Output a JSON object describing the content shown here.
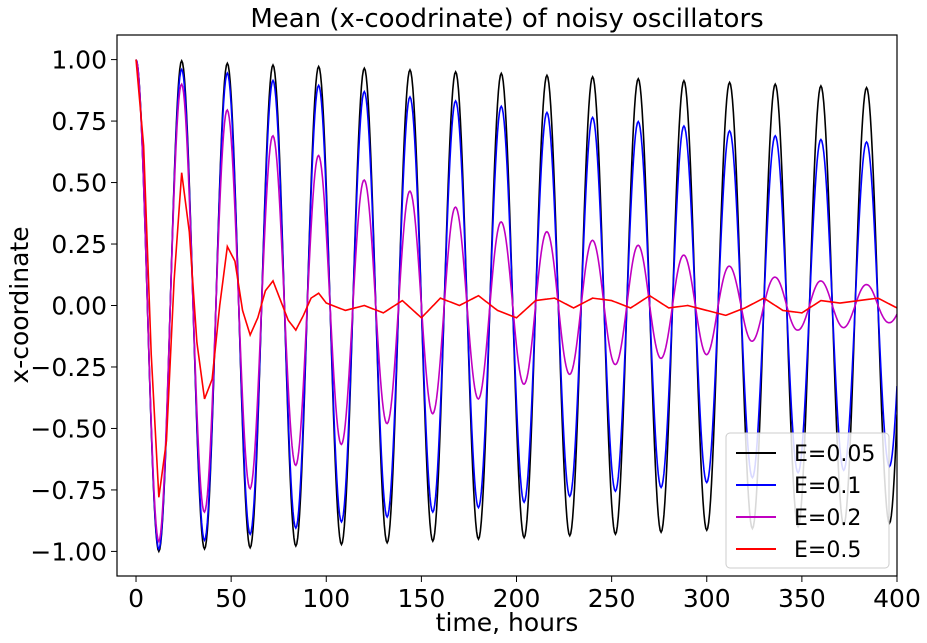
{
  "chart_data": {
    "type": "line",
    "title": "Mean (x-coodrinate) of noisy oscillators",
    "xlabel": "time, hours",
    "ylabel": "x-coordinate",
    "xlim": [
      -10,
      400
    ],
    "ylim": [
      -1.1,
      1.1
    ],
    "x_ticks": [
      0,
      50,
      100,
      150,
      200,
      250,
      300,
      350,
      400
    ],
    "x_tick_labels": [
      "0",
      "50",
      "100",
      "150",
      "200",
      "250",
      "300",
      "350",
      "400"
    ],
    "y_ticks": [
      1.0,
      0.75,
      0.5,
      0.25,
      0.0,
      -0.25,
      -0.5,
      -0.75,
      -1.0
    ],
    "y_tick_labels": [
      "1.00",
      "0.75",
      "0.50",
      "0.25",
      "0.00",
      "−0.25",
      "−0.50",
      "−0.75",
      "−1.00"
    ],
    "grid": false,
    "legend_position": "lower-right",
    "period_hours": 24,
    "series": [
      {
        "name": "E=0.05",
        "color": "#000000",
        "x": [
          0,
          6,
          12,
          18,
          24,
          36,
          48,
          60,
          72,
          84,
          96,
          108,
          120,
          132,
          144,
          156,
          168,
          180,
          192,
          204,
          216,
          228,
          240,
          252,
          264,
          276,
          288,
          300,
          312,
          324,
          336,
          348,
          360,
          372,
          384,
          396,
          400
        ],
        "y": [
          1.0,
          0.0,
          -1.0,
          0.0,
          0.995,
          -0.99,
          0.985,
          -0.985,
          0.978,
          -0.978,
          0.972,
          -0.972,
          0.965,
          -0.965,
          0.958,
          -0.958,
          0.95,
          -0.95,
          0.944,
          -0.944,
          0.936,
          -0.936,
          0.93,
          -0.93,
          0.922,
          -0.922,
          0.914,
          -0.914,
          0.907,
          -0.907,
          0.9,
          -0.9,
          0.893,
          -0.893,
          0.886,
          -0.886,
          -0.35
        ]
      },
      {
        "name": "E=0.1",
        "color": "#0000ff",
        "x": [
          0,
          6,
          12,
          18,
          24,
          36,
          48,
          60,
          72,
          84,
          96,
          108,
          120,
          132,
          144,
          156,
          168,
          180,
          192,
          204,
          216,
          228,
          240,
          252,
          264,
          276,
          288,
          300,
          312,
          324,
          336,
          348,
          360,
          372,
          384,
          396,
          400
        ],
        "y": [
          1.0,
          0.0,
          -0.99,
          0.0,
          0.96,
          -0.955,
          0.945,
          -0.93,
          0.915,
          -0.905,
          0.895,
          -0.88,
          0.87,
          -0.86,
          0.848,
          -0.84,
          0.832,
          -0.822,
          0.81,
          -0.8,
          0.785,
          -0.776,
          0.765,
          -0.755,
          0.748,
          -0.74,
          0.73,
          -0.72,
          0.71,
          -0.7,
          0.69,
          -0.68,
          0.675,
          -0.67,
          0.665,
          -0.655,
          -0.3
        ]
      },
      {
        "name": "E=0.2",
        "color": "#c000c0",
        "x": [
          0,
          6,
          12,
          18,
          24,
          36,
          48,
          60,
          72,
          84,
          96,
          108,
          120,
          132,
          144,
          156,
          168,
          180,
          192,
          204,
          216,
          228,
          240,
          252,
          264,
          276,
          288,
          300,
          312,
          324,
          336,
          348,
          360,
          372,
          384,
          396,
          400
        ],
        "y": [
          1.0,
          0.0,
          -0.96,
          0.0,
          0.9,
          -0.84,
          0.795,
          -0.745,
          0.69,
          -0.65,
          0.61,
          -0.565,
          0.51,
          -0.48,
          0.465,
          -0.44,
          0.4,
          -0.38,
          0.34,
          -0.32,
          0.3,
          -0.28,
          0.265,
          -0.24,
          0.245,
          -0.215,
          0.205,
          -0.2,
          0.16,
          -0.145,
          0.115,
          -0.1,
          0.1,
          -0.09,
          0.085,
          -0.07,
          -0.08
        ]
      },
      {
        "name": "E=0.5",
        "color": "#ff0000",
        "x": [
          0,
          4,
          8,
          12,
          16,
          20,
          24,
          28,
          32,
          36,
          40,
          44,
          48,
          52,
          56,
          60,
          64,
          68,
          72,
          76,
          80,
          84,
          88,
          92,
          96,
          100,
          110,
          120,
          130,
          140,
          150,
          160,
          170,
          180,
          190,
          200,
          210,
          220,
          230,
          240,
          250,
          260,
          270,
          280,
          290,
          300,
          310,
          320,
          330,
          340,
          350,
          360,
          370,
          380,
          390,
          400
        ],
        "y": [
          1.0,
          0.65,
          -0.2,
          -0.78,
          -0.55,
          0.1,
          0.54,
          0.3,
          -0.15,
          -0.38,
          -0.3,
          0.0,
          0.24,
          0.18,
          -0.02,
          -0.12,
          -0.05,
          0.06,
          0.1,
          0.02,
          -0.06,
          -0.1,
          -0.04,
          0.03,
          0.05,
          0.01,
          -0.02,
          0.0,
          -0.03,
          0.02,
          -0.05,
          0.03,
          0.0,
          0.04,
          -0.02,
          -0.05,
          0.02,
          0.03,
          -0.01,
          0.03,
          0.02,
          -0.01,
          0.04,
          -0.01,
          0.0,
          -0.02,
          -0.04,
          -0.01,
          0.03,
          -0.02,
          -0.03,
          0.02,
          0.01,
          0.02,
          0.03,
          -0.01
        ]
      }
    ]
  }
}
